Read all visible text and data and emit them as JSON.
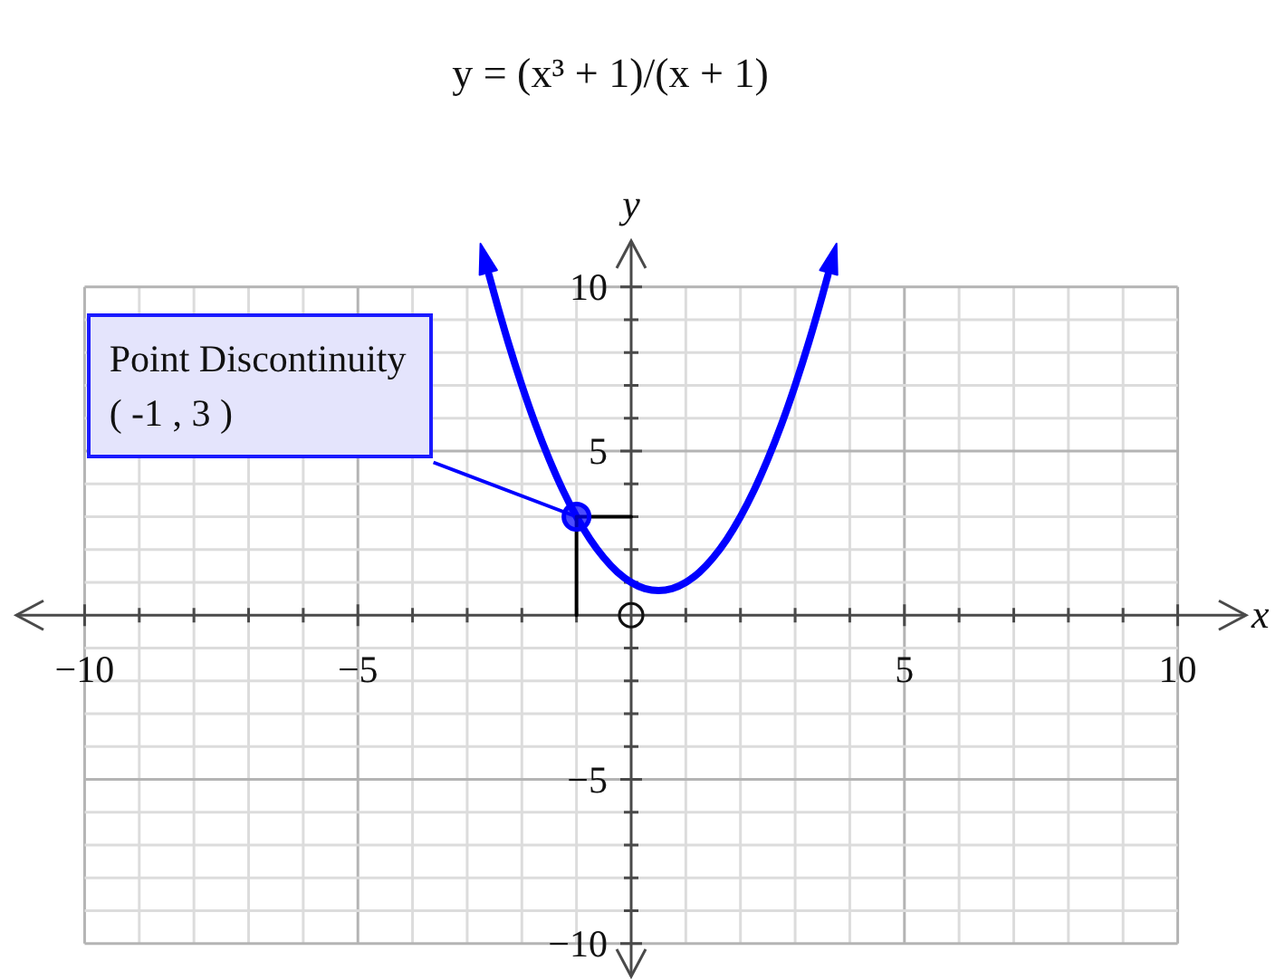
{
  "chart_data": {
    "type": "line",
    "title": "y = (x³ + 1)/(x + 1)",
    "xlabel": "x",
    "ylabel": "y",
    "xlim": [
      -11.25,
      11.25
    ],
    "ylim": [
      -11,
      11.4
    ],
    "xticks": [
      {
        "value": -10,
        "label": "−10"
      },
      {
        "value": -9,
        "label": null
      },
      {
        "value": -8,
        "label": null
      },
      {
        "value": -7,
        "label": null
      },
      {
        "value": -6,
        "label": null
      },
      {
        "value": -5,
        "label": "−5"
      },
      {
        "value": -4,
        "label": null
      },
      {
        "value": -3,
        "label": null
      },
      {
        "value": -2,
        "label": null
      },
      {
        "value": -1,
        "label": null
      },
      {
        "value": 1,
        "label": null
      },
      {
        "value": 2,
        "label": null
      },
      {
        "value": 3,
        "label": null
      },
      {
        "value": 4,
        "label": null
      },
      5,
      {
        "value": 6,
        "label": null
      },
      {
        "value": 7,
        "label": null
      },
      {
        "value": 8,
        "label": null
      },
      {
        "value": 9,
        "label": null
      },
      10
    ],
    "yticks": [
      {
        "value": -10,
        "label": "−10"
      },
      {
        "value": -9,
        "label": null
      },
      {
        "value": -8,
        "label": null
      },
      {
        "value": -7,
        "label": null
      },
      {
        "value": -6,
        "label": null
      },
      {
        "value": -5,
        "label": "−5"
      },
      {
        "value": -4,
        "label": null
      },
      {
        "value": -3,
        "label": null
      },
      {
        "value": -2,
        "label": null
      },
      {
        "value": -1,
        "label": null
      },
      {
        "value": 1,
        "label": null
      },
      {
        "value": 2,
        "label": null
      },
      {
        "value": 3,
        "label": null
      },
      {
        "value": 4,
        "label": null
      },
      5,
      {
        "value": 6,
        "label": null
      },
      {
        "value": 7,
        "label": null
      },
      {
        "value": 8,
        "label": null
      },
      {
        "value": 9,
        "label": null
      },
      10
    ],
    "grid": true,
    "series": [
      {
        "color": "#0000ff",
        "marker": "none",
        "x": [
          -2.6,
          -2.5,
          -2.25,
          -2,
          -1.75,
          -1.5,
          -1.25,
          -1,
          -0.75,
          -0.5,
          -0.25,
          0,
          0.25,
          0.5,
          0.75,
          1,
          1.25,
          1.5,
          1.75,
          2,
          2.25,
          2.5,
          2.75,
          3,
          3.25,
          3.5,
          3.6
        ],
        "values": [
          10.36,
          9.75,
          8.31,
          7,
          5.81,
          4.75,
          3.81,
          3,
          2.31,
          1.75,
          1.31,
          1,
          0.81,
          0.75,
          0.81,
          1,
          1.31,
          1.75,
          2.31,
          3,
          3.81,
          4.75,
          5.81,
          7,
          8.31,
          9.75,
          10.36
        ]
      },
      {
        "color": "#000000",
        "marker": "none",
        "x": [
          -1,
          -1,
          0
        ],
        "values": [
          0,
          3,
          3
        ]
      },
      {
        "type": "scatter",
        "color": "#0000ff",
        "marker": "circle",
        "x": [
          -1
        ],
        "values": [
          3
        ]
      }
    ],
    "annotations": [
      {
        "text": "Point Discontinuity\n( -1 , 3 )",
        "x": -1,
        "y": 3
      }
    ]
  }
}
